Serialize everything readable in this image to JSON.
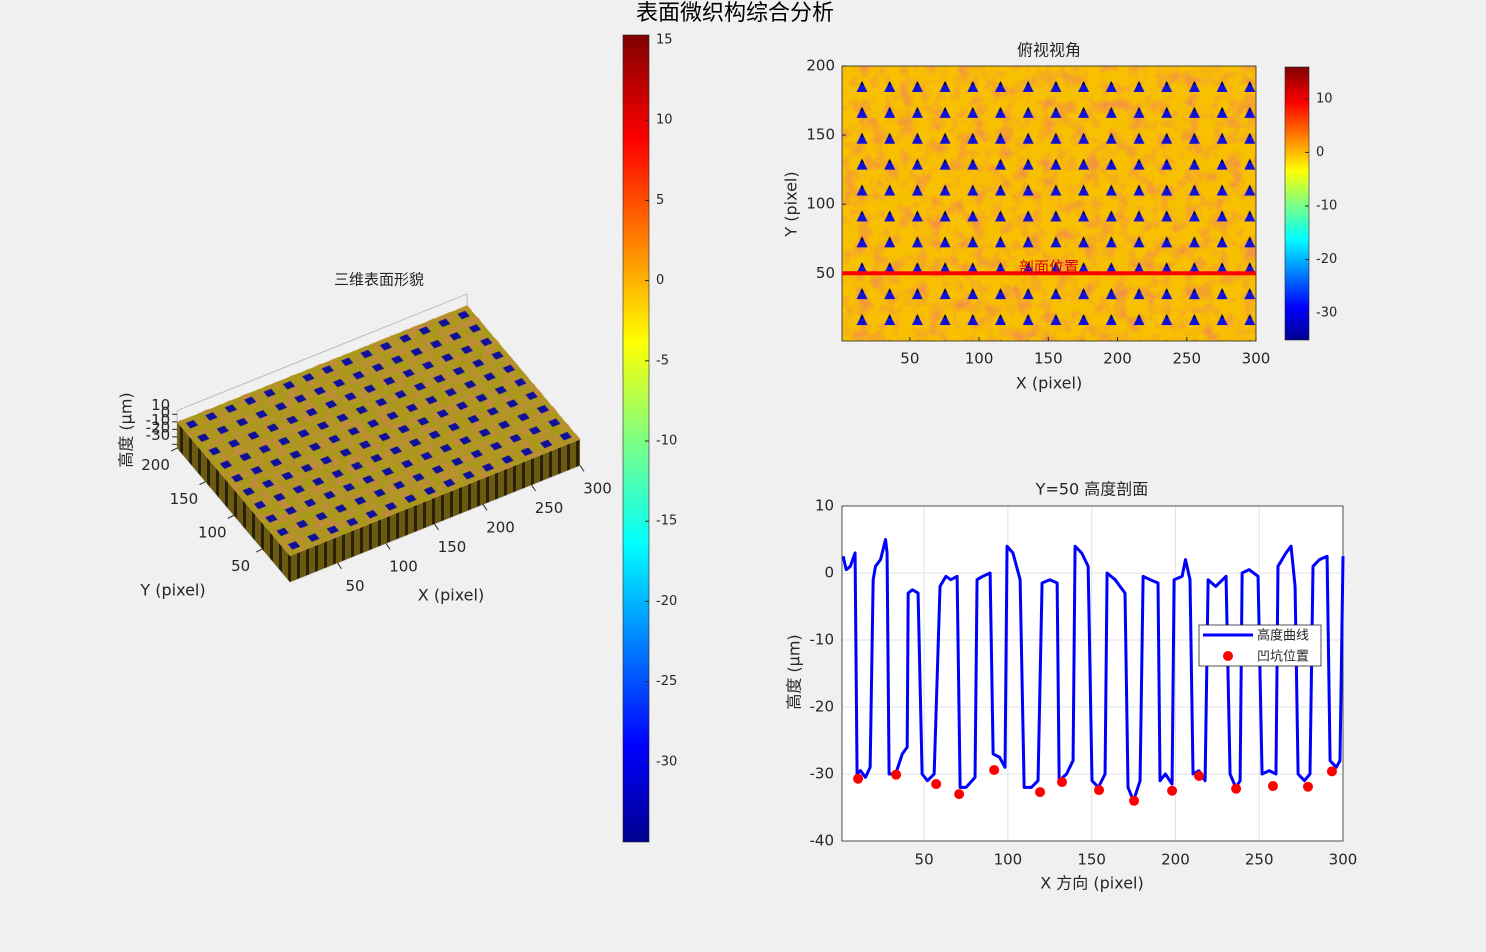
{
  "title": "表面微织构综合分析",
  "chart_data": [
    {
      "type": "surface3d",
      "title": "三维表面形貌",
      "xlabel": "X (pixel)",
      "ylabel": "Y (pixel)",
      "zlabel": "高度 (μm)",
      "xlim": [
        1,
        300
      ],
      "ylim": [
        1,
        200
      ],
      "zlim": [
        -35,
        15
      ],
      "xticks": [
        50,
        100,
        150,
        200,
        250,
        300
      ],
      "yticks": [
        50,
        100,
        150,
        200
      ],
      "zticks": [
        10,
        0,
        -10,
        -20,
        -30
      ],
      "colorbar": {
        "clim": [
          -35,
          15
        ],
        "ticks": [
          15,
          10,
          5,
          0,
          -5,
          -10,
          -15,
          -20,
          -25,
          -30
        ]
      }
    },
    {
      "type": "heatmap",
      "title": "俯视视角",
      "xlabel": "X (pixel)",
      "ylabel": "Y (pixel)",
      "xlim": [
        1,
        300
      ],
      "ylim": [
        1,
        200
      ],
      "xticks": [
        50,
        100,
        150,
        200,
        250,
        300
      ],
      "yticks": [
        50,
        100,
        150,
        200
      ],
      "profile_y": 50,
      "annotation": "剖面位置",
      "colorbar": {
        "clim": [
          -35,
          15
        ],
        "ticks": [
          10,
          0,
          -10,
          -20,
          -30
        ]
      }
    },
    {
      "type": "line",
      "title": "Y=50 高度剖面",
      "xlabel": "X 方向 (pixel)",
      "ylabel": "高度 (μm)",
      "xlim": [
        1,
        300
      ],
      "ylim": [
        -40,
        10
      ],
      "xticks": [
        50,
        100,
        150,
        200,
        250,
        300
      ],
      "yticks": [
        10,
        0,
        -10,
        -20,
        -30,
        -40
      ],
      "grid": true,
      "legend": "east",
      "series": [
        {
          "name": "高度曲线",
          "color": "#0000ff",
          "x": [
            1.7,
            3.5,
            6,
            8.8,
            10.0,
            12,
            15,
            17.8,
            19.6,
            21,
            24,
            27,
            27.9,
            29.1,
            33,
            37,
            39.9,
            40.5,
            43,
            46.4,
            48.8,
            52,
            56.0,
            59.5,
            63,
            66,
            69.7,
            71.5,
            75,
            80.4,
            81.6,
            85,
            89.4,
            91.2,
            95,
            98.3,
            99.5,
            103,
            107.3,
            109.7,
            114,
            118.0,
            120.4,
            125,
            129.4,
            130.6,
            135,
            138.9,
            140.1,
            144,
            147.9,
            150.2,
            154,
            158.0,
            159.2,
            164,
            169.9,
            171.7,
            175,
            178.9,
            180.7,
            185,
            189.6,
            190.8,
            194,
            198.0,
            199.2,
            204,
            206,
            208.7,
            210.5,
            214,
            217.7,
            219.5,
            224,
            230.2,
            232.6,
            236,
            238.6,
            239.8,
            244,
            249.3,
            251.7,
            256,
            260.0,
            261.2,
            266,
            269,
            271.4,
            273.2,
            277,
            280.3,
            282.1,
            286,
            290.5,
            292.3,
            296,
            298.2,
            300
          ],
          "values": [
            2.5,
            0.5,
            1,
            3,
            -30,
            -29.5,
            -30.5,
            -29,
            -1,
            1,
            2,
            5,
            3,
            -30,
            -30,
            -27,
            -26,
            -3,
            -2.5,
            -3,
            -30,
            -31,
            -30,
            -2,
            -0.5,
            -1,
            -0.5,
            -32,
            -32,
            -30.5,
            -1,
            -0.5,
            0,
            -27,
            -27.5,
            -29,
            4,
            3,
            -1,
            -32,
            -32,
            -31,
            -1.5,
            -1,
            -1.5,
            -31,
            -30,
            -28,
            4,
            3,
            1,
            -31,
            -32,
            -30,
            0,
            -1,
            -3,
            -32,
            -34,
            -31,
            -0.5,
            -1,
            -1.5,
            -31,
            -30,
            -31.5,
            -1,
            -0.5,
            2,
            -1,
            -30,
            -29.5,
            -31,
            -1,
            -2,
            -0.5,
            -30,
            -32,
            -31,
            0,
            0.5,
            -0.5,
            -30,
            -29.5,
            -30,
            1,
            3,
            4,
            -2,
            -30,
            -31,
            -30,
            1,
            2,
            2.5,
            -28,
            -29,
            -28,
            2.5
          ]
        },
        {
          "name": "凹坑位置",
          "color": "#ff0000",
          "marker": "dot",
          "x": [
            10.6,
            33.3,
            57.2,
            70.9,
            91.8,
            119.2,
            132.3,
            154.4,
            175.3,
            198,
            214.1,
            236.2,
            258.2,
            279.1,
            293.4
          ],
          "values": [
            -30.7,
            -30.1,
            -31.5,
            -33.0,
            -29.4,
            -32.7,
            -31.2,
            -32.4,
            -34.0,
            -32.5,
            -30.3,
            -32.2,
            -31.8,
            -31.9,
            -29.6
          ]
        }
      ]
    }
  ]
}
